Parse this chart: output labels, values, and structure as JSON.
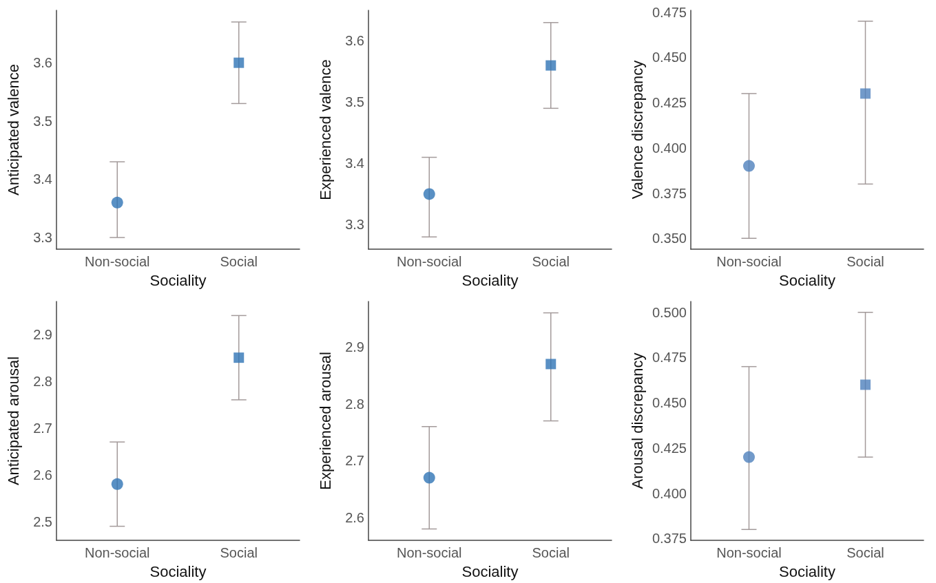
{
  "chart_data": [
    {
      "type": "scatter",
      "xlabel": "Sociality",
      "ylabel": "Anticipated valence",
      "categories": [
        "Non-social",
        "Social"
      ],
      "ylim": [
        3.28,
        3.69
      ],
      "yticks": [
        3.3,
        3.4,
        3.5,
        3.6
      ],
      "series": [
        {
          "color": "#2f74b5",
          "marker": "circle",
          "values": [
            3.36,
            null
          ],
          "errors": [
            [
              3.3,
              3.43
            ],
            null
          ]
        },
        {
          "color": "#2f74b5",
          "marker": "square",
          "values": [
            null,
            3.6
          ],
          "errors": [
            null,
            [
              3.53,
              3.67
            ]
          ]
        }
      ]
    },
    {
      "type": "scatter",
      "xlabel": "Sociality",
      "ylabel": "Experienced valence",
      "categories": [
        "Non-social",
        "Social"
      ],
      "ylim": [
        3.26,
        3.65
      ],
      "yticks": [
        3.3,
        3.4,
        3.5,
        3.6
      ],
      "series": [
        {
          "color": "#2f74b5",
          "marker": "circle",
          "values": [
            3.35,
            null
          ],
          "errors": [
            [
              3.28,
              3.41
            ],
            null
          ]
        },
        {
          "color": "#2f74b5",
          "marker": "square",
          "values": [
            null,
            3.56
          ],
          "errors": [
            null,
            [
              3.49,
              3.63
            ]
          ]
        }
      ]
    },
    {
      "type": "scatter",
      "xlabel": "Sociality",
      "ylabel": "Valence discrepancy",
      "categories": [
        "Non-social",
        "Social"
      ],
      "ylim": [
        0.344,
        0.476
      ],
      "yticks": [
        {
          "value": 0.35,
          "label": "0.350"
        },
        0.375,
        {
          "value": 0.4,
          "label": "0.400"
        },
        0.425,
        {
          "value": 0.45,
          "label": "0.450"
        },
        0.475
      ],
      "series": [
        {
          "color": "#4f81bd",
          "marker": "circle",
          "values": [
            0.39,
            null
          ],
          "errors": [
            [
              0.35,
              0.43
            ],
            null
          ]
        },
        {
          "color": "#4f81bd",
          "marker": "square",
          "values": [
            null,
            0.43
          ],
          "errors": [
            null,
            [
              0.38,
              0.47
            ]
          ]
        }
      ]
    },
    {
      "type": "scatter",
      "xlabel": "Sociality",
      "ylabel": "Anticipated arousal",
      "categories": [
        "Non-social",
        "Social"
      ],
      "ylim": [
        2.46,
        2.97
      ],
      "yticks": [
        2.5,
        2.6,
        2.7,
        2.8,
        2.9
      ],
      "series": [
        {
          "color": "#2f74b5",
          "marker": "circle",
          "values": [
            2.58,
            null
          ],
          "errors": [
            [
              2.49,
              2.67
            ],
            null
          ]
        },
        {
          "color": "#2f74b5",
          "marker": "square",
          "values": [
            null,
            2.85
          ],
          "errors": [
            null,
            [
              2.76,
              2.94
            ]
          ]
        }
      ]
    },
    {
      "type": "scatter",
      "xlabel": "Sociality",
      "ylabel": "Experienced arousal",
      "categories": [
        "Non-social",
        "Social"
      ],
      "ylim": [
        2.56,
        2.98
      ],
      "yticks": [
        2.6,
        2.7,
        2.8,
        2.9
      ],
      "series": [
        {
          "color": "#2f74b5",
          "marker": "circle",
          "values": [
            2.67,
            null
          ],
          "errors": [
            [
              2.58,
              2.76
            ],
            null
          ]
        },
        {
          "color": "#2f74b5",
          "marker": "square",
          "values": [
            null,
            2.87
          ],
          "errors": [
            null,
            [
              2.77,
              2.96
            ]
          ]
        }
      ]
    },
    {
      "type": "scatter",
      "xlabel": "Sociality",
      "ylabel": "Arousal discrepancy",
      "categories": [
        "Non-social",
        "Social"
      ],
      "ylim": [
        0.374,
        0.506
      ],
      "yticks": [
        0.375,
        {
          "value": 0.4,
          "label": "0.400"
        },
        0.425,
        {
          "value": 0.45,
          "label": "0.450"
        },
        0.475,
        {
          "value": 0.5,
          "label": "0.500"
        }
      ],
      "series": [
        {
          "color": "#4f81bd",
          "marker": "circle",
          "values": [
            0.42,
            null
          ],
          "errors": [
            [
              0.38,
              0.47
            ],
            null
          ]
        },
        {
          "color": "#4f81bd",
          "marker": "square",
          "values": [
            null,
            0.46
          ],
          "errors": [
            null,
            [
              0.42,
              0.5
            ]
          ]
        }
      ]
    }
  ]
}
